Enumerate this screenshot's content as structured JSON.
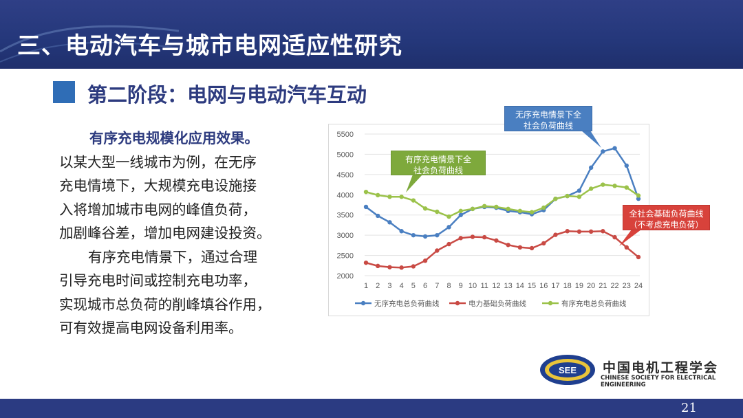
{
  "title": "三、电动汽车与城市电网适应性研究",
  "subtitle": "第二阶段：电网与电动汽车互动",
  "body": {
    "lines": [
      "有序充电规模化应用效果。",
      "以某大型一线城市为例，在无序",
      "充电情境下，大规模充电设施接",
      "入将增加城市电网的峰值负荷，",
      "加剧峰谷差，增加电网建设投资。",
      "有序充电情景下，通过合理",
      "引导充电时间或控制充电功率，",
      "实现城市总负荷的削峰填谷作用，",
      "可有效提高电网设备利用率。"
    ]
  },
  "callouts": {
    "blue": "无序充电情景下全\n社会负荷曲线",
    "green": "有序充电情景下全\n社会负荷曲线",
    "red": "全社会基础负荷曲线\n（不考虑充电负荷）"
  },
  "chart_data": {
    "type": "line",
    "x": [
      1,
      2,
      3,
      4,
      5,
      6,
      7,
      8,
      9,
      10,
      11,
      12,
      13,
      14,
      15,
      16,
      17,
      18,
      19,
      20,
      21,
      22,
      23,
      24
    ],
    "ylim": [
      2000,
      5500
    ],
    "yticks": [
      2000,
      2500,
      3000,
      3500,
      4000,
      4500,
      5000,
      5500
    ],
    "grid": true,
    "legend_position": "bottom",
    "series": [
      {
        "name": "无序充电总负荷曲线",
        "color": "#4a7fc1",
        "values": [
          3700,
          3480,
          3320,
          3100,
          3000,
          2970,
          3000,
          3200,
          3500,
          3650,
          3700,
          3680,
          3600,
          3570,
          3520,
          3620,
          3900,
          3970,
          4100,
          4670,
          5070,
          5150,
          4720,
          3900
        ]
      },
      {
        "name": "电力基础负荷曲线",
        "color": "#c94a44",
        "values": [
          2320,
          2240,
          2210,
          2200,
          2230,
          2370,
          2620,
          2780,
          2930,
          2960,
          2950,
          2870,
          2760,
          2700,
          2680,
          2800,
          3010,
          3100,
          3090,
          3090,
          3100,
          2950,
          2700,
          2460
        ]
      },
      {
        "name": "有序充电总负荷曲线",
        "color": "#9bc24a",
        "values": [
          4070,
          3990,
          3950,
          3950,
          3860,
          3660,
          3580,
          3460,
          3600,
          3650,
          3720,
          3700,
          3650,
          3600,
          3570,
          3680,
          3900,
          3970,
          3950,
          4150,
          4250,
          4220,
          4180,
          3980
        ]
      }
    ]
  },
  "logo": {
    "badge": "SEE",
    "name_cn": "中国电机工程学会",
    "name_en": "CHINESE SOCIETY FOR ELECTRICAL ENGINEERING"
  },
  "page_number": "21",
  "colors": {
    "header": "#2b3b82",
    "accent": "#2f6db6"
  }
}
